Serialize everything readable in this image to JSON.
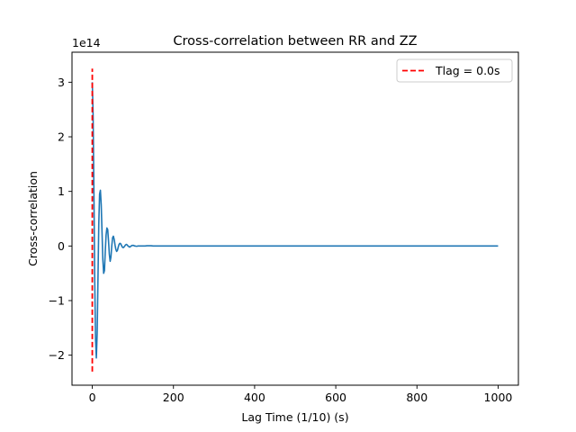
{
  "chart_data": {
    "type": "line",
    "title": "Cross-correlation between RR and ZZ",
    "xlabel": "Lag Time (1/10) (s)",
    "ylabel": "Cross-correlation",
    "y_offset_label": "1e14",
    "y_multiplier": 100000000000000.0,
    "xlim": [
      -50,
      1050
    ],
    "ylim": [
      -2.55,
      3.55
    ],
    "x_ticks": [
      0,
      200,
      400,
      600,
      800,
      1000
    ],
    "x_tick_labels": [
      "0",
      "200",
      "400",
      "600",
      "800",
      "1000"
    ],
    "y_ticks": [
      -2,
      -1,
      0,
      1,
      2,
      3
    ],
    "y_tick_labels": [
      "−2",
      "−1",
      "0",
      "1",
      "2",
      "3"
    ],
    "grid": false,
    "legend_position": "upper right",
    "series": [
      {
        "color": "#1f77b4",
        "style": "solid",
        "x": [
          0,
          2,
          4,
          6,
          8,
          10,
          12,
          14,
          16,
          18,
          20,
          22,
          24,
          26,
          28,
          30,
          32,
          34,
          36,
          38,
          40,
          42,
          44,
          46,
          48,
          50,
          52,
          54,
          56,
          58,
          60,
          62,
          64,
          66,
          68,
          70,
          72,
          74,
          76,
          78,
          80,
          82,
          84,
          86,
          88,
          90,
          92,
          94,
          96,
          98,
          100,
          102,
          104,
          106,
          108,
          110,
          112,
          114,
          116,
          118,
          120,
          125,
          130,
          135,
          140,
          145,
          150,
          160,
          180,
          200,
          300,
          400,
          500,
          600,
          700,
          800,
          900,
          1000
        ],
        "y": [
          3.0,
          2.4,
          1.0,
          -0.6,
          -1.7,
          -2.05,
          -1.6,
          -0.6,
          0.4,
          0.95,
          1.02,
          0.75,
          0.25,
          -0.25,
          -0.5,
          -0.45,
          -0.1,
          0.2,
          0.33,
          0.3,
          0.1,
          -0.15,
          -0.28,
          -0.2,
          0.0,
          0.15,
          0.18,
          0.12,
          0.02,
          -0.06,
          -0.1,
          -0.08,
          -0.02,
          0.03,
          0.05,
          0.04,
          0.01,
          -0.02,
          -0.03,
          -0.02,
          0.0,
          0.02,
          0.03,
          0.02,
          0.0,
          -0.01,
          -0.02,
          -0.01,
          0.0,
          0.01,
          0.01,
          0.01,
          0.0,
          0.0,
          -0.005,
          -0.005,
          0.0,
          0.0,
          0.0,
          0.0,
          0.0,
          0.0,
          0.0,
          0.005,
          0.005,
          0.005,
          0.0,
          0.0,
          0.0,
          0.0,
          0.0,
          0.0,
          0.0,
          0.0,
          0.0,
          0.0,
          0.0,
          0.0
        ]
      },
      {
        "name": "Tlag = 0.0s",
        "color": "#ff0000",
        "style": "dashed",
        "x": [
          0,
          0
        ],
        "y": [
          -2.3,
          3.25
        ]
      }
    ]
  }
}
